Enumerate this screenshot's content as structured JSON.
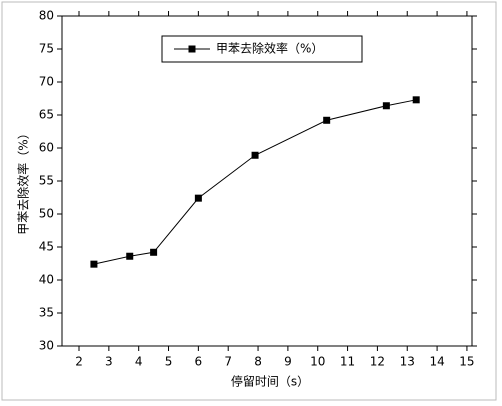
{
  "chart_data": {
    "type": "line",
    "xlabel": "停留时间（s）",
    "ylabel": "甲苯去除效率（%）",
    "x": [
      2.5,
      3.7,
      4.5,
      6.0,
      7.9,
      10.3,
      12.3,
      13.3
    ],
    "series": [
      {
        "name": "甲苯去除效率（%）",
        "color": "#000000",
        "values": [
          42.4,
          43.6,
          44.2,
          52.4,
          58.9,
          64.2,
          66.4,
          67.3
        ]
      }
    ],
    "xlim": [
      1.43,
      15.17
    ],
    "xticks": [
      2,
      3,
      4,
      5,
      6,
      7,
      8,
      9,
      10,
      11,
      12,
      13,
      14,
      15
    ],
    "ylim": [
      30,
      80
    ],
    "yticks": [
      30,
      35,
      40,
      45,
      50,
      55,
      60,
      65,
      70,
      75,
      80
    ],
    "legend": "upper center"
  }
}
